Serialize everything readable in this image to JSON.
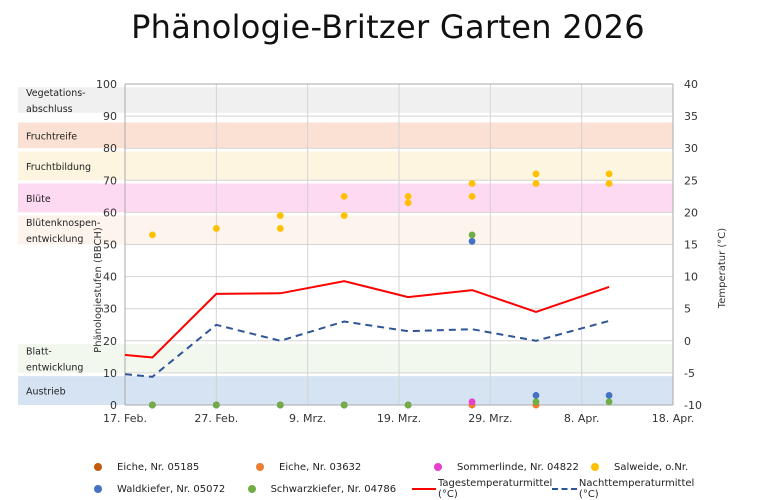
{
  "chart_data": {
    "type": "scatter",
    "title": "Phänologie-Britzer Garten 2026",
    "xlabel": "",
    "ylabel": "Phänologiestufen (BBCH)",
    "y2label": "Temperatur (°C)",
    "ylim": [
      0,
      100
    ],
    "y2lim": [
      -10,
      40
    ],
    "x_ticks": [
      "17. Feb.",
      "27. Feb.",
      "9. Mrz.",
      "19. Mrz.",
      "29. Mrz.",
      "8. Apr.",
      "18. Apr."
    ],
    "y_ticks": [
      0,
      10,
      20,
      30,
      40,
      50,
      60,
      70,
      80,
      90,
      100
    ],
    "y2_ticks": [
      -10,
      -5,
      0,
      5,
      10,
      15,
      20,
      25,
      30,
      35,
      40
    ],
    "bands": [
      {
        "label": "Vegetations-\nabschluss",
        "from": 91,
        "to": 99,
        "color": "#f0f0f0"
      },
      {
        "label": "Fruchtreife",
        "from": 80,
        "to": 88,
        "color": "#fbe1d3"
      },
      {
        "label": "Fruchtbildung",
        "from": 70,
        "to": 79,
        "color": "#fdf5e0"
      },
      {
        "label": "Blüte",
        "from": 60,
        "to": 69,
        "color": "#fdd9f2"
      },
      {
        "label": "Blütenknospen-\nentwicklung",
        "from": 50,
        "to": 59,
        "color": "#fdf4ee"
      },
      {
        "label": "Blatt-\nentwicklung",
        "from": 10,
        "to": 19,
        "color": "#f3f8ef"
      },
      {
        "label": "Austrieb",
        "from": 0,
        "to": 9,
        "color": "#d5e3f2"
      }
    ],
    "dates": [
      "20. Feb.",
      "27. Feb.",
      "6. Mrz.",
      "13. Mrz.",
      "20. Mrz.",
      "27. Mrz.",
      "3. Apr.",
      "11. Apr."
    ],
    "series": [
      {
        "name": "Eiche, Nr. 05185",
        "kind": "scatter",
        "color": "#c55a11",
        "values": [
          0,
          0,
          0,
          0,
          0,
          0,
          0,
          null
        ]
      },
      {
        "name": "Eiche, Nr. 03632",
        "kind": "scatter",
        "color": "#ed7d31",
        "values": [
          0,
          0,
          0,
          0,
          0,
          0,
          0,
          null
        ]
      },
      {
        "name": "Sommerlinde, Nr. 04822",
        "kind": "scatter",
        "color": "#e83fcf",
        "values": [
          null,
          null,
          null,
          null,
          null,
          1,
          null,
          null
        ]
      },
      {
        "name": "Salweide, o.Nr.",
        "kind": "scatter",
        "color": "#ffc000",
        "values": [
          [
            53
          ],
          [
            55
          ],
          [
            55,
            59
          ],
          [
            59,
            65
          ],
          [
            63,
            65
          ],
          [
            65,
            69
          ],
          [
            69,
            72
          ],
          [
            69,
            72
          ]
        ]
      },
      {
        "name": "Waldkiefer, Nr. 05072",
        "kind": "scatter",
        "color": "#4472c4",
        "values": [
          0,
          0,
          0,
          0,
          0,
          51,
          3,
          3
        ]
      },
      {
        "name": "Schwarzkiefer, Nr. 04786",
        "kind": "scatter",
        "color": "#70ad47",
        "values": [
          0,
          0,
          0,
          0,
          0,
          53,
          1,
          1
        ]
      },
      {
        "name": "Tagestemperaturmittel (°C)",
        "kind": "line",
        "axis": "y2",
        "color": "#ff0000",
        "x": [
          "17. Feb.",
          "20. Feb.",
          "27. Feb.",
          "6. Mrz.",
          "13. Mrz.",
          "20. Mrz.",
          "27. Mrz.",
          "3. Apr.",
          "11. Apr."
        ],
        "values": [
          -2.2,
          -2.6,
          7.3,
          7.4,
          9.3,
          6.8,
          7.9,
          4.5,
          8.4
        ]
      },
      {
        "name": "Nachttemperaturmittel (°C)",
        "kind": "line",
        "axis": "y2",
        "dash": true,
        "color": "#2f5597",
        "x": [
          "17. Feb.",
          "20. Feb.",
          "27. Feb.",
          "6. Mrz.",
          "13. Mrz.",
          "20. Mrz.",
          "27. Mrz.",
          "3. Apr.",
          "11. Apr."
        ],
        "values": [
          -5.2,
          -5.6,
          2.5,
          0,
          3.0,
          1.5,
          1.8,
          0,
          3.1
        ]
      }
    ],
    "grid": true,
    "legend_position": "bottom"
  },
  "legend": {
    "row1": [
      {
        "label": "Eiche, Nr. 05185",
        "color": "#c55a11"
      },
      {
        "label": "Eiche, Nr. 03632",
        "color": "#ed7d31"
      },
      {
        "label": "Sommerlinde, Nr. 04822",
        "color": "#e83fcf"
      },
      {
        "label": "Salweide, o.Nr.",
        "color": "#ffc000"
      }
    ],
    "row2": [
      {
        "label": "Waldkiefer, Nr. 05072",
        "color": "#4472c4"
      },
      {
        "label": "Schwarzkiefer, Nr. 04786",
        "color": "#70ad47"
      },
      {
        "label": "Tagestemperaturmittel (°C)",
        "color": "#ff0000"
      },
      {
        "label": "Nachttemperaturmittel (°C)",
        "color": "#2f5597"
      }
    ]
  }
}
